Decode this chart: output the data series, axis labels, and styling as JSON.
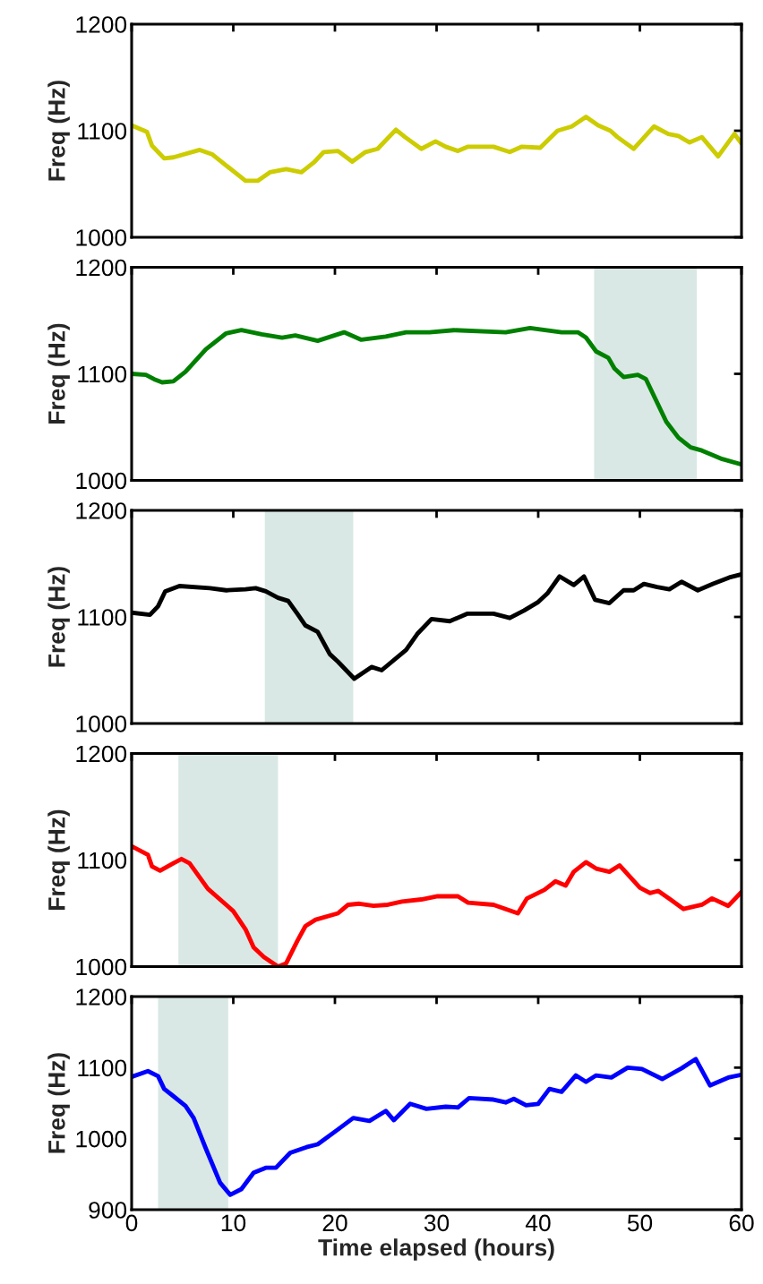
{
  "chart_data": [
    {
      "type": "line",
      "ylabel": "Freq (Hz)",
      "xlim": [
        0,
        60
      ],
      "xticks": [
        0,
        10,
        20,
        30,
        40,
        50,
        60
      ],
      "ylim": [
        1000,
        1200
      ],
      "yticks": [
        1000,
        1100,
        1200
      ],
      "tick_labels": "y",
      "grid": false,
      "series": [
        {
          "color": "#cccc00",
          "x": [
            0,
            1.5,
            2,
            2.6,
            3.2,
            4.1,
            6.7,
            7.9,
            11.2,
            12.4,
            13.6,
            15.2,
            16.7,
            17.9,
            18.9,
            20.3,
            21.7,
            23,
            24.2,
            26,
            26.9,
            28.5,
            29.9,
            30.9,
            32.1,
            33.1,
            35.6,
            37.2,
            38.4,
            40.2,
            41.9,
            43.3,
            44.7,
            45.9,
            47.1,
            47.8,
            49.4,
            51.4,
            52.8,
            53.8,
            54.9,
            56.1,
            57.7,
            59.3,
            60
          ],
          "values": [
            1105,
            1099,
            1086,
            1080,
            1074,
            1075,
            1082,
            1078,
            1053,
            1053,
            1061,
            1064,
            1061,
            1070,
            1080,
            1081,
            1071,
            1080,
            1083,
            1101,
            1094,
            1083,
            1090,
            1085,
            1081,
            1085,
            1085,
            1080,
            1085,
            1084,
            1100,
            1104,
            1113,
            1105,
            1100,
            1094,
            1083,
            1104,
            1097,
            1095,
            1089,
            1094,
            1076,
            1097,
            1088
          ]
        }
      ]
    },
    {
      "type": "line",
      "ylabel": "Freq (Hz)",
      "xlim": [
        0,
        60
      ],
      "xticks": [
        0,
        10,
        20,
        30,
        40,
        50,
        60
      ],
      "ylim": [
        1000,
        1200
      ],
      "yticks": [
        1000,
        1100,
        1200
      ],
      "tick_labels": "y",
      "grid": false,
      "bands": [
        {
          "axis": "x",
          "from": 45.5,
          "to": 55.6,
          "color": "#d9e8e4"
        }
      ],
      "series": [
        {
          "color": "#008000",
          "x": [
            0,
            1.4,
            2.2,
            3,
            4.1,
            5.3,
            7.3,
            9.3,
            10.8,
            12.8,
            14.8,
            16.1,
            18.3,
            20.9,
            22.6,
            25,
            27,
            29.3,
            31.7,
            36.8,
            39.2,
            42.3,
            43.9,
            44.7,
            45.7,
            46.9,
            47.5,
            48.4,
            49.8,
            50.6,
            52.6,
            53.8,
            55,
            56.1,
            58.1,
            60
          ],
          "values": [
            1100,
            1099,
            1095,
            1092,
            1093,
            1102,
            1123,
            1138,
            1141,
            1137,
            1134,
            1136,
            1131,
            1139,
            1132,
            1135,
            1139,
            1139,
            1141,
            1139,
            1143,
            1139,
            1139,
            1134,
            1121,
            1115,
            1105,
            1097,
            1099,
            1095,
            1055,
            1040,
            1031,
            1028,
            1020,
            1015
          ]
        }
      ]
    },
    {
      "type": "line",
      "ylabel": "Freq (Hz)",
      "xlim": [
        0,
        60
      ],
      "xticks": [
        0,
        10,
        20,
        30,
        40,
        50,
        60
      ],
      "ylim": [
        1000,
        1200
      ],
      "yticks": [
        1000,
        1100,
        1200
      ],
      "tick_labels": "y",
      "grid": false,
      "bands": [
        {
          "axis": "x",
          "from": 13.1,
          "to": 21.8,
          "color": "#d9e8e4"
        }
      ],
      "series": [
        {
          "color": "#000000",
          "x": [
            0,
            1.8,
            2.6,
            3.3,
            4.7,
            7.7,
            9.3,
            11.2,
            12.2,
            13.2,
            14.4,
            15.4,
            16.3,
            17.1,
            18.3,
            19.5,
            20.3,
            21.9,
            23.6,
            24.6,
            27,
            28.1,
            29.5,
            31.3,
            33,
            35.6,
            37.2,
            38.6,
            40,
            40.9,
            42.1,
            43.5,
            44.5,
            45.6,
            47,
            48.4,
            49.4,
            50.4,
            51.7,
            52.9,
            54.1,
            55.7,
            57.2,
            58.8,
            60
          ],
          "values": [
            1104,
            1102,
            1110,
            1124,
            1129,
            1127,
            1125,
            1126,
            1127,
            1124,
            1118,
            1115,
            1103,
            1092,
            1086,
            1065,
            1058,
            1042,
            1053,
            1050,
            1069,
            1084,
            1098,
            1096,
            1103,
            1103,
            1099,
            1106,
            1114,
            1122,
            1138,
            1130,
            1138,
            1116,
            1113,
            1125,
            1125,
            1131,
            1128,
            1126,
            1133,
            1125,
            1131,
            1137,
            1140
          ]
        }
      ]
    },
    {
      "type": "line",
      "ylabel": "Freq (Hz)",
      "xlim": [
        0,
        60
      ],
      "xticks": [
        0,
        10,
        20,
        30,
        40,
        50,
        60
      ],
      "ylim": [
        1000,
        1200
      ],
      "yticks": [
        1000,
        1100,
        1200
      ],
      "tick_labels": "y",
      "grid": false,
      "bands": [
        {
          "axis": "x",
          "from": 4.6,
          "to": 14.4,
          "color": "#d9e8e4"
        }
      ],
      "series": [
        {
          "color": "#ff0000",
          "x": [
            0,
            1.6,
            2,
            2.8,
            4.1,
            4.9,
            5.7,
            7.5,
            9.3,
            10,
            11.2,
            12,
            13,
            14.4,
            15.2,
            16.3,
            17.1,
            18.1,
            20.3,
            21.3,
            22.4,
            23.8,
            25.2,
            26.6,
            28.5,
            30.1,
            32.1,
            33.1,
            35.6,
            38,
            38.9,
            40.6,
            41.7,
            42.7,
            43.5,
            44.7,
            45.7,
            47,
            48,
            50,
            51,
            51.8,
            53,
            54.3,
            56.1,
            57.1,
            58.7,
            60
          ],
          "values": [
            1113,
            1105,
            1094,
            1090,
            1097,
            1101,
            1097,
            1073,
            1058,
            1052,
            1035,
            1018,
            1009,
            1000,
            1003,
            1024,
            1038,
            1044,
            1050,
            1058,
            1059,
            1057,
            1058,
            1061,
            1063,
            1066,
            1066,
            1060,
            1058,
            1050,
            1064,
            1072,
            1080,
            1076,
            1089,
            1098,
            1092,
            1089,
            1095,
            1074,
            1069,
            1071,
            1063,
            1054,
            1058,
            1064,
            1057,
            1070
          ]
        }
      ]
    },
    {
      "type": "line",
      "ylabel": "Freq (Hz)",
      "xlabel": "Time elapsed (hours)",
      "xlim": [
        0,
        60
      ],
      "xticks": [
        0,
        10,
        20,
        30,
        40,
        50,
        60
      ],
      "ylim": [
        900,
        1200
      ],
      "yticks": [
        900,
        1000,
        1100,
        1200
      ],
      "grid": false,
      "bands": [
        {
          "axis": "x",
          "from": 2.6,
          "to": 9.5,
          "color": "#d9e8e4"
        }
      ],
      "series": [
        {
          "color": "#0000ff",
          "x": [
            0,
            1.6,
            2.6,
            3.2,
            4,
            5.3,
            6.1,
            7.3,
            8.7,
            9.7,
            10.8,
            12,
            13.2,
            14.2,
            15.6,
            17.2,
            18.3,
            20.3,
            21.8,
            23.4,
            25,
            25.8,
            27.4,
            29,
            30.9,
            32.1,
            33.2,
            35.6,
            36.8,
            37.6,
            38.8,
            40,
            41.1,
            42.3,
            43.7,
            44.7,
            45.7,
            47.2,
            48.8,
            50.2,
            52.2,
            54.1,
            55.5,
            56.9,
            58.7,
            60
          ],
          "values": [
            1087,
            1095,
            1088,
            1070,
            1061,
            1046,
            1029,
            986,
            938,
            921,
            929,
            952,
            959,
            959,
            980,
            988,
            992,
            1013,
            1029,
            1025,
            1039,
            1026,
            1049,
            1042,
            1045,
            1044,
            1057,
            1055,
            1051,
            1056,
            1047,
            1049,
            1070,
            1066,
            1089,
            1080,
            1089,
            1086,
            1100,
            1098,
            1084,
            1099,
            1112,
            1075,
            1086,
            1090
          ]
        }
      ]
    }
  ]
}
